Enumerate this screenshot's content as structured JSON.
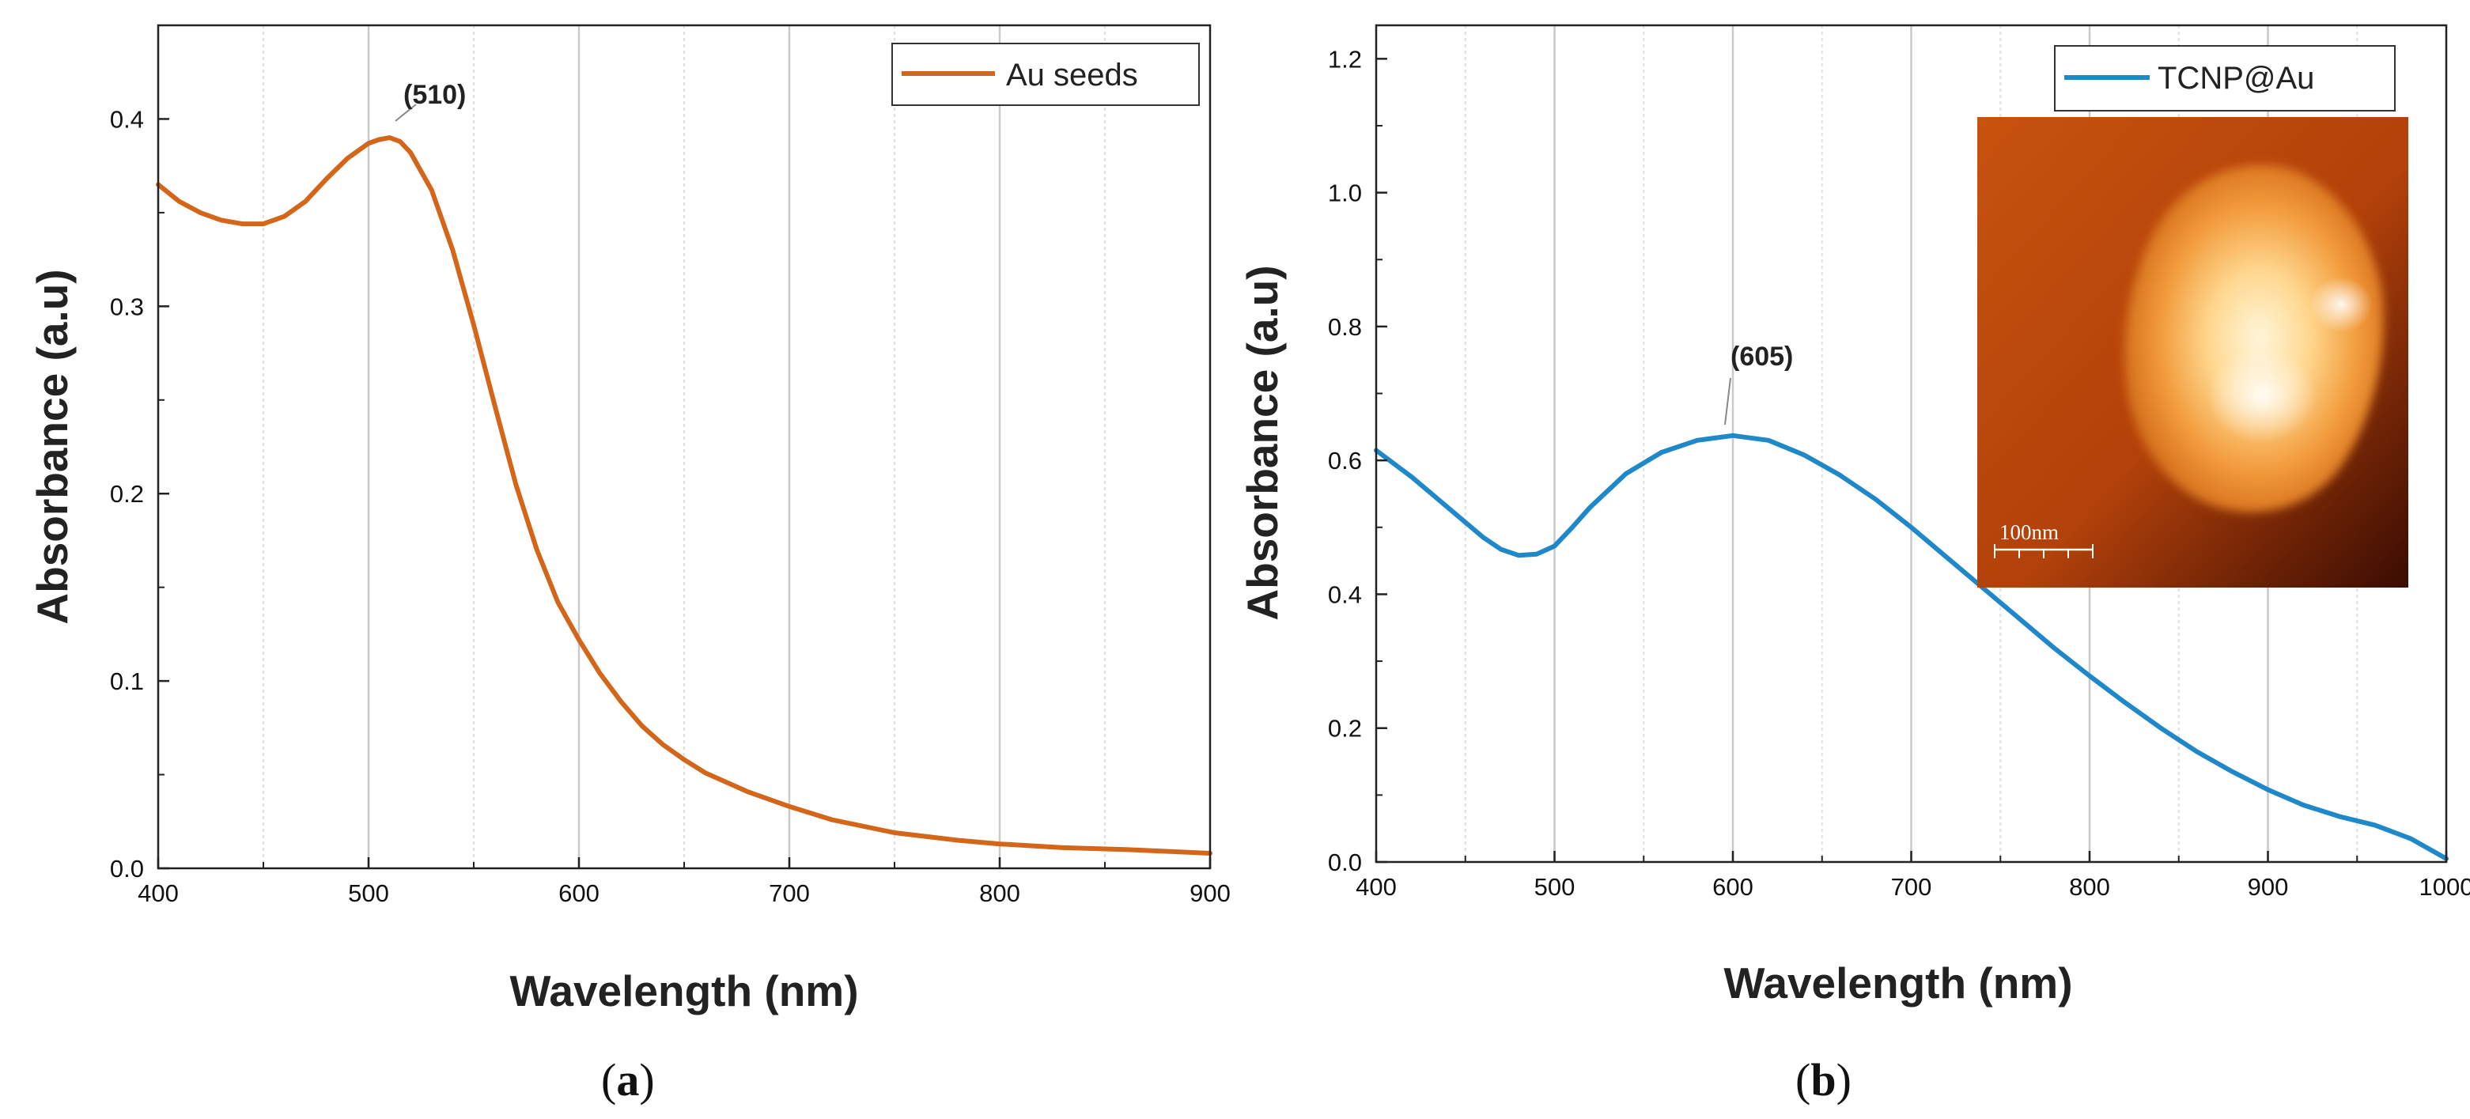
{
  "chart_data": [
    {
      "type": "line",
      "panel_label": "a",
      "xlabel": "Wavelength (nm)",
      "ylabel": "Absorbance (a.u)",
      "xlim": [
        400,
        900
      ],
      "ylim": [
        0,
        0.45
      ],
      "xticks": [
        400,
        500,
        600,
        700,
        800,
        900
      ],
      "yticks": [
        0.0,
        0.1,
        0.2,
        0.3,
        0.4
      ],
      "grid": "vertical",
      "legend": {
        "position": "top-right",
        "entries": [
          "Au seeds"
        ]
      },
      "series": [
        {
          "name": "Au seeds",
          "color": "#d4661a",
          "x": [
            400,
            410,
            420,
            430,
            440,
            450,
            460,
            470,
            480,
            490,
            500,
            505,
            510,
            515,
            520,
            530,
            540,
            550,
            560,
            570,
            580,
            590,
            600,
            610,
            620,
            630,
            640,
            650,
            660,
            680,
            700,
            720,
            750,
            780,
            800,
            830,
            860,
            900
          ],
          "y": [
            0.365,
            0.356,
            0.35,
            0.346,
            0.344,
            0.344,
            0.348,
            0.356,
            0.368,
            0.379,
            0.387,
            0.389,
            0.39,
            0.388,
            0.382,
            0.362,
            0.33,
            0.29,
            0.247,
            0.205,
            0.17,
            0.142,
            0.122,
            0.104,
            0.089,
            0.076,
            0.066,
            0.058,
            0.051,
            0.041,
            0.033,
            0.026,
            0.019,
            0.015,
            0.013,
            0.011,
            0.01,
            0.008
          ]
        }
      ],
      "annotations": [
        {
          "text": "(510)",
          "x": 510,
          "y": 0.39
        }
      ]
    },
    {
      "type": "line",
      "panel_label": "b",
      "xlabel": "Wavelength (nm)",
      "ylabel": "Absorbance (a.u)",
      "xlim": [
        400,
        1000
      ],
      "ylim": [
        0,
        1.25
      ],
      "xticks": [
        400,
        500,
        600,
        700,
        800,
        900,
        1000
      ],
      "yticks": [
        0.0,
        0.2,
        0.4,
        0.6,
        0.8,
        1.0,
        1.2
      ],
      "grid": "vertical",
      "legend": {
        "position": "top-right",
        "entries": [
          "TCNP@Au"
        ]
      },
      "series": [
        {
          "name": "TCNP@Au",
          "color": "#1f88c9",
          "x": [
            400,
            420,
            440,
            460,
            470,
            480,
            490,
            500,
            510,
            520,
            540,
            560,
            580,
            600,
            620,
            640,
            660,
            680,
            700,
            720,
            740,
            760,
            780,
            800,
            820,
            840,
            860,
            880,
            900,
            920,
            940,
            960,
            980,
            1000
          ],
          "y": [
            0.615,
            0.575,
            0.53,
            0.485,
            0.467,
            0.458,
            0.46,
            0.472,
            0.5,
            0.53,
            0.58,
            0.612,
            0.63,
            0.637,
            0.63,
            0.608,
            0.578,
            0.542,
            0.5,
            0.455,
            0.41,
            0.365,
            0.32,
            0.278,
            0.238,
            0.2,
            0.165,
            0.135,
            0.108,
            0.085,
            0.068,
            0.055,
            0.035,
            0.005
          ]
        }
      ],
      "annotations": [
        {
          "text": "(605)",
          "x": 605,
          "y": 0.64
        }
      ],
      "inset": {
        "type": "microscopy-image",
        "scale_bar": "100nm"
      }
    }
  ]
}
